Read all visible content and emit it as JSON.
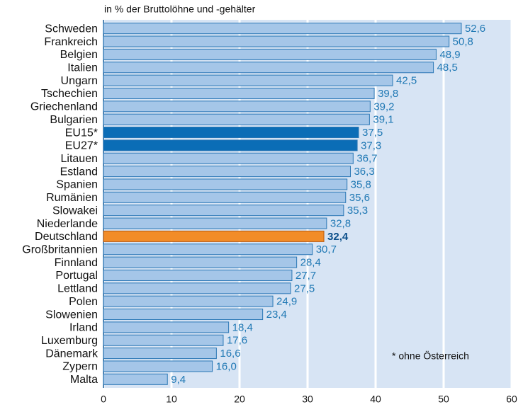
{
  "chart_data": {
    "type": "bar",
    "orientation": "horizontal",
    "subtitle": "in % der Bruttolöhne und -gehälter",
    "annotation": "* ohne Österreich",
    "categories": [
      "Schweden",
      "Frankreich",
      "Belgien",
      "Italien",
      "Ungarn",
      "Tschechien",
      "Griechenland",
      "Bulgarien",
      "EU15*",
      "EU27*",
      "Litauen",
      "Estland",
      "Spanien",
      "Rumänien",
      "Slowakei",
      "Niederlande",
      "Deutschland",
      "Großbritannien",
      "Finnland",
      "Portugal",
      "Lettland",
      "Polen",
      "Slowenien",
      "Irland",
      "Luxemburg",
      "Dänemark",
      "Zypern",
      "Malta"
    ],
    "values": [
      52.6,
      50.8,
      48.9,
      48.5,
      42.5,
      39.8,
      39.2,
      39.1,
      37.5,
      37.3,
      36.7,
      36.3,
      35.8,
      35.6,
      35.3,
      32.8,
      32.4,
      30.7,
      28.4,
      27.7,
      27.5,
      24.9,
      23.4,
      18.4,
      17.6,
      16.6,
      16.0,
      9.4
    ],
    "value_labels": [
      "52,6",
      "50,8",
      "48,9",
      "48,5",
      "42,5",
      "39,8",
      "39,2",
      "39,1",
      "37,5",
      "37,3",
      "36,7",
      "36,3",
      "35,8",
      "35,6",
      "35,3",
      "32,8",
      "32,4",
      "30,7",
      "28,4",
      "27,7",
      "27,5",
      "24,9",
      "23,4",
      "18,4",
      "17,6",
      "16,6",
      "16,0",
      "9,4"
    ],
    "colors": [
      "#a5c6e8",
      "#a5c6e8",
      "#a5c6e8",
      "#a5c6e8",
      "#a5c6e8",
      "#a5c6e8",
      "#a5c6e8",
      "#a5c6e8",
      "#0b6db6",
      "#0b6db6",
      "#a5c6e8",
      "#a5c6e8",
      "#a5c6e8",
      "#a5c6e8",
      "#a5c6e8",
      "#a5c6e8",
      "#f28c28",
      "#a5c6e8",
      "#a5c6e8",
      "#a5c6e8",
      "#a5c6e8",
      "#a5c6e8",
      "#a5c6e8",
      "#a5c6e8",
      "#a5c6e8",
      "#a5c6e8",
      "#a5c6e8",
      "#a5c6e8"
    ],
    "bold_value_labels": [
      16
    ],
    "xlim": [
      0,
      60
    ],
    "xticks": [
      0,
      10,
      20,
      30,
      40,
      50,
      60
    ],
    "grid": true
  }
}
